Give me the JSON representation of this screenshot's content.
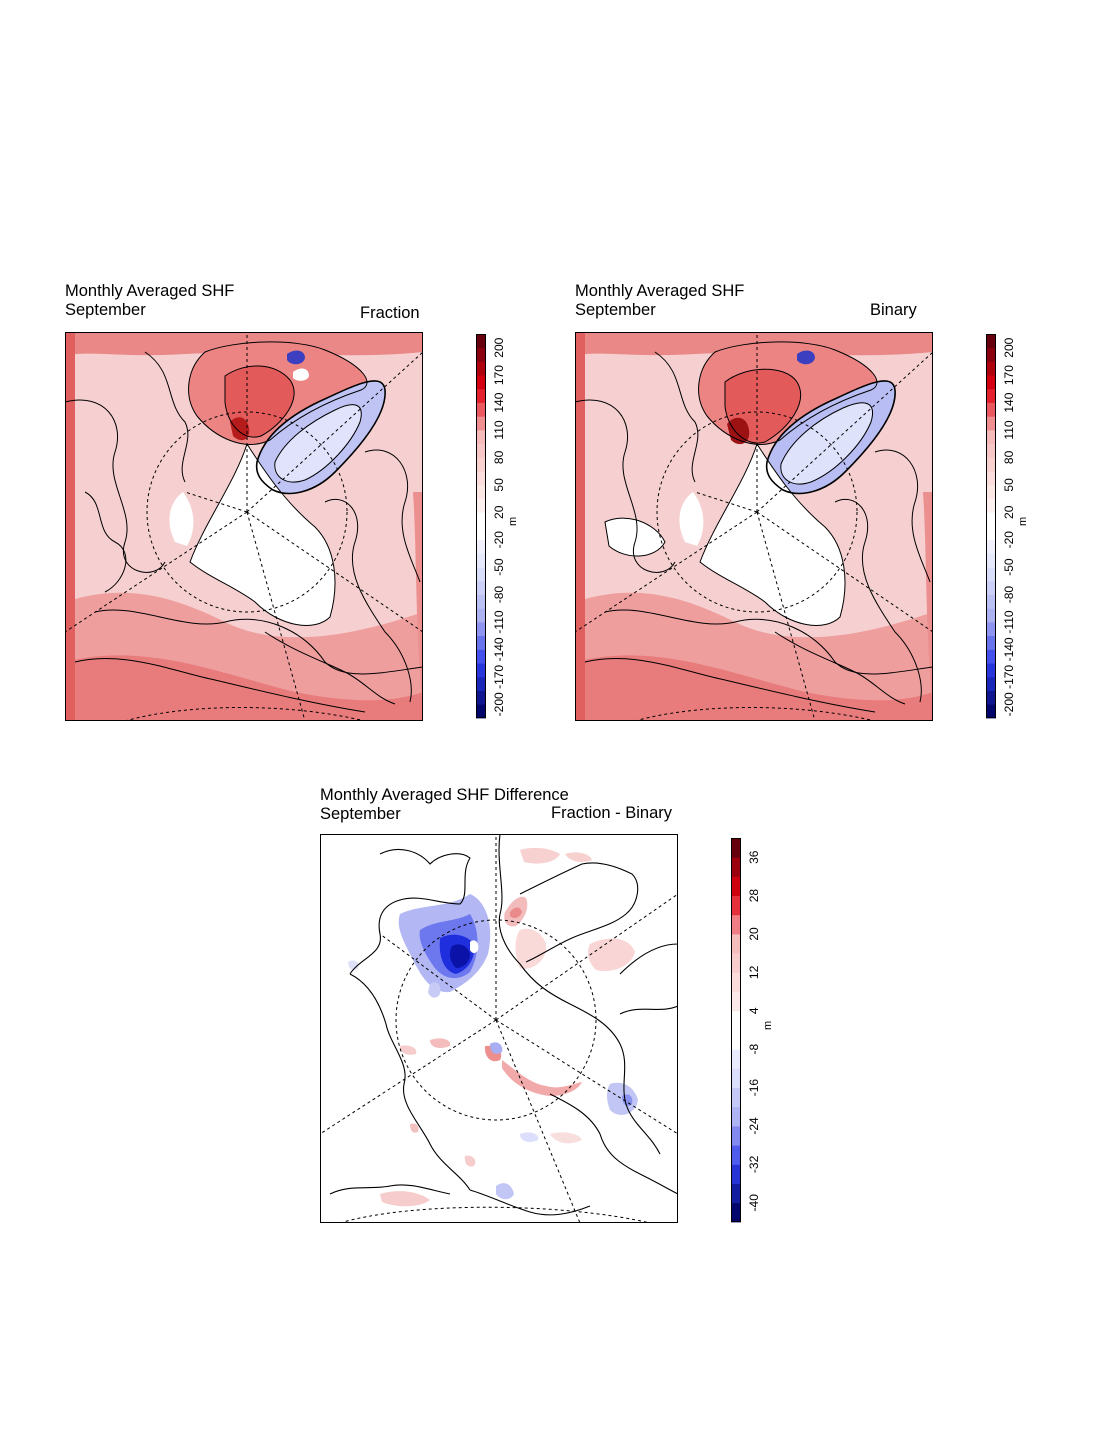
{
  "panels": {
    "fraction": {
      "title": "Monthly Averaged SHF",
      "subtitle": "September",
      "label": "Fraction"
    },
    "binary": {
      "title": "Monthly Averaged SHF",
      "subtitle": "September",
      "label": "Binary"
    },
    "difference": {
      "title": "Monthly Averaged SHF Difference",
      "subtitle": "September",
      "label": "Fraction - Binary"
    }
  },
  "colorbars": {
    "shf": {
      "ticks": [
        "-200",
        "-170",
        "-140",
        "-110",
        "-80",
        "-50",
        "-20",
        "20",
        "50",
        "80",
        "110",
        "140",
        "170",
        "200"
      ],
      "unit": "m"
    },
    "diff": {
      "ticks": [
        "-40",
        "-32",
        "-24",
        "-16",
        "-8",
        "4",
        "12",
        "20",
        "28",
        "36"
      ],
      "unit": "m"
    }
  },
  "colors": {
    "deep_red": "#67000d",
    "red": "#e0000f",
    "light_red": "#f4b8b8",
    "pale_red": "#fbdede",
    "white": "#ffffff",
    "pale_blue": "#dde0fb",
    "light_blue": "#a9aef2",
    "blue": "#2d3dea",
    "deep_blue": "#02066a"
  }
}
